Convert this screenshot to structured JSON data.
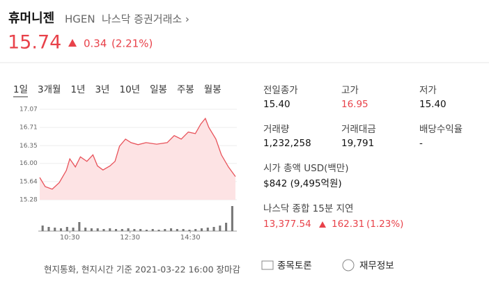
{
  "header": {
    "name": "휴머니젠",
    "ticker": "HGEN",
    "exchange": "나스닥 증권거래소 ›"
  },
  "quote": {
    "price": "15.74",
    "change": "0.34",
    "change_pct": "(2.21%)"
  },
  "chart": {
    "type": "line",
    "tabs": [
      "1일",
      "3개월",
      "1년",
      "3년",
      "10년",
      "일봉",
      "주봉",
      "월봉"
    ],
    "selected_tab": 0,
    "color": "#e8525a",
    "fill": "#fde3e4",
    "ylim": [
      15.28,
      17.07
    ],
    "yticks": [
      17.07,
      16.71,
      16.35,
      {
        "value": 16,
        "label": "16.00"
      },
      15.64,
      15.28
    ],
    "xlim": [
      0,
      390
    ],
    "xticks": [
      {
        "value": 60,
        "label": "10:30"
      },
      {
        "value": 180,
        "label": "12:30"
      },
      {
        "value": 300,
        "label": "14:30"
      }
    ],
    "x": [
      0,
      11,
      25,
      39,
      53,
      60,
      71,
      81,
      94,
      106,
      115,
      126,
      140,
      150,
      159,
      171,
      182,
      196,
      212,
      233,
      254,
      268,
      282,
      296,
      310,
      321,
      330,
      337,
      351,
      362,
      376,
      390
    ],
    "values": [
      15.72,
      15.54,
      15.49,
      15.62,
      15.86,
      16.09,
      15.93,
      16.13,
      16.04,
      16.17,
      15.95,
      15.87,
      15.95,
      16.04,
      16.34,
      16.48,
      16.41,
      16.37,
      16.41,
      16.38,
      16.41,
      16.55,
      16.48,
      16.62,
      16.59,
      16.78,
      16.89,
      16.71,
      16.48,
      16.17,
      15.93,
      15.74
    ],
    "volume": [
      8,
      6,
      5,
      4,
      6,
      5,
      13,
      5,
      4,
      4,
      3,
      4,
      3,
      3,
      4,
      3,
      3,
      2,
      3,
      2,
      3,
      4,
      3,
      3,
      2,
      3,
      4,
      5,
      6,
      8,
      12,
      36
    ]
  },
  "stats": [
    {
      "label": "전일종가",
      "value": "15.40"
    },
    {
      "label": "고가",
      "value": "16.95",
      "color": "#e8424a"
    },
    {
      "label": "저가",
      "value": "15.40"
    },
    {
      "label": "거래량",
      "value": "1,232,258"
    },
    {
      "label": "거래대금",
      "value": "19,791"
    },
    {
      "label": "배당수익율",
      "value": "-"
    }
  ],
  "market_cap": {
    "label": "시가 총액 USD(백만)",
    "value": "$842 (9,495억원)"
  },
  "index": {
    "label": "나스닥 종합 15분 지연",
    "value": "13,377.54",
    "change": "162.31",
    "change_pct": "(1.23%)"
  },
  "buttons": [
    "종목토론",
    "재무정보"
  ],
  "footer": "현지통화, 현지시간 기준 2021-03-22 16:00 장마감"
}
